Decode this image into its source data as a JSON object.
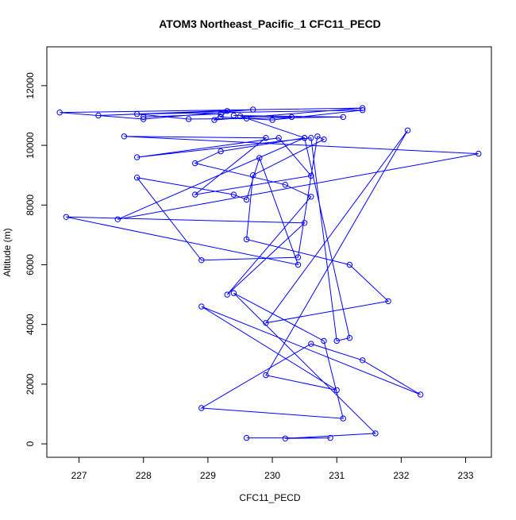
{
  "chart_data": {
    "type": "line",
    "title": "ATOM3 Northeast_Pacific_1 CFC11_PECD",
    "xlabel": "CFC11_PECD",
    "ylabel": "Altitude (m)",
    "xlim": [
      226.5,
      233.4
    ],
    "ylim": [
      -450,
      13300
    ],
    "x_ticks": [
      227,
      228,
      229,
      230,
      231,
      232,
      233
    ],
    "x_tick_labels": [
      "227",
      "228",
      "229",
      "230",
      "231",
      "232",
      "233"
    ],
    "y_ticks": [
      0,
      2000,
      4000,
      6000,
      8000,
      10000,
      12000
    ],
    "y_tick_labels": [
      "0",
      "2000",
      "4000",
      "6000",
      "8000",
      "10000",
      "12000"
    ],
    "grid": false,
    "series": [
      {
        "color": "#0000ff",
        "marker": "open-circle",
        "x": [
          229.6,
          230.9,
          230.2,
          231.6,
          229.4,
          230.8,
          231.1,
          228.9,
          230.6,
          231.4,
          232.3,
          228.9,
          231.0,
          229.9,
          232.1,
          229.9,
          231.8,
          231.2,
          229.6,
          229.7,
          230.8,
          230.7,
          230.4,
          228.9,
          227.9,
          229.4,
          229.6,
          229.8,
          230.4,
          226.8,
          230.5,
          229.3,
          230.6,
          230.2,
          228.8,
          229.2,
          230.5,
          227.6,
          233.2,
          227.7,
          229.9,
          228.8,
          230.6,
          230.1,
          227.9,
          230.6,
          231.0,
          231.2,
          230.5,
          229.5,
          230.3,
          229.4,
          231.1,
          229.6,
          228.7,
          227.9,
          231.4,
          230.0,
          229.2,
          229.3,
          227.3,
          229.7,
          228.0,
          226.7,
          231.4,
          229.1,
          229.2,
          228.0
        ],
        "y": [
          200,
          200,
          180,
          350,
          5050,
          3450,
          850,
          1200,
          3350,
          2800,
          1650,
          4600,
          1800,
          2300,
          10500,
          4050,
          4780,
          6000,
          6850,
          9000,
          10200,
          10300,
          6250,
          6150,
          8920,
          8350,
          8180,
          9580,
          6000,
          7600,
          7400,
          5000,
          8280,
          8680,
          9400,
          9800,
          10250,
          7520,
          9720,
          10300,
          10250,
          8350,
          8980,
          10250,
          9600,
          10250,
          3450,
          3550,
          10250,
          10980,
          10950,
          11000,
          10950,
          10900,
          10880,
          11050,
          11180,
          10850,
          10950,
          11150,
          11000,
          11200,
          10880,
          11100,
          11250,
          10850,
          11050,
          10950
        ]
      }
    ]
  }
}
